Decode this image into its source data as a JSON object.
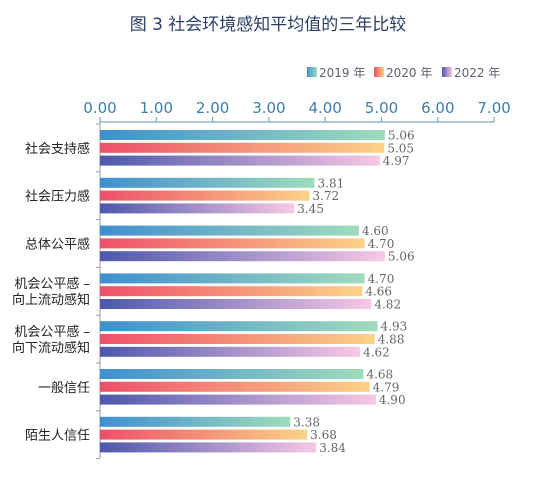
{
  "chart_data": {
    "type": "bar",
    "orientation": "horizontal",
    "title": "图 3 社会环境感知平均值的三年比较",
    "xlim": [
      0,
      7
    ],
    "ticks": [
      "0.00",
      "1.00",
      "2.00",
      "3.00",
      "4.00",
      "5.00",
      "6.00",
      "7.00"
    ],
    "legend_position": "top-right",
    "categories": [
      [
        "社会支持感"
      ],
      [
        "社会压力感"
      ],
      [
        "总体公平感"
      ],
      [
        "机会公平感 –",
        "向上流动感知"
      ],
      [
        "机会公平感 –",
        "向下流动感知"
      ],
      [
        "一般信任"
      ],
      [
        "陌生人信任"
      ]
    ],
    "series": [
      {
        "name": "2019 年",
        "gradient": [
          "#3f8fd1",
          "#9fdcbc"
        ],
        "values": [
          5.06,
          3.81,
          4.6,
          4.7,
          4.93,
          4.68,
          3.38
        ],
        "labels": [
          "5.06",
          "3.81",
          "4.60",
          "4.70",
          "4.93",
          "4.68",
          "3.38"
        ]
      },
      {
        "name": "2020 年",
        "gradient": [
          "#ee4f6a",
          "#fcd287"
        ],
        "values": [
          5.05,
          3.72,
          4.7,
          4.66,
          4.88,
          4.79,
          3.68
        ],
        "labels": [
          "5.05",
          "3.72",
          "4.70",
          "4.66",
          "4.88",
          "4.79",
          "3.68"
        ]
      },
      {
        "name": "2022 年",
        "gradient": [
          "#4c57ad",
          "#f8c8e4"
        ],
        "values": [
          4.97,
          3.45,
          5.06,
          4.82,
          4.62,
          4.9,
          3.84
        ],
        "labels": [
          "4.97",
          "3.45",
          "5.06",
          "4.82",
          "4.62",
          "4.90",
          "3.84"
        ]
      }
    ]
  },
  "colors": {
    "title": "#2b3f66",
    "tick_labels": "#3c7ea8",
    "axis": "#7fa9c6",
    "value_labels": "#666666"
  }
}
